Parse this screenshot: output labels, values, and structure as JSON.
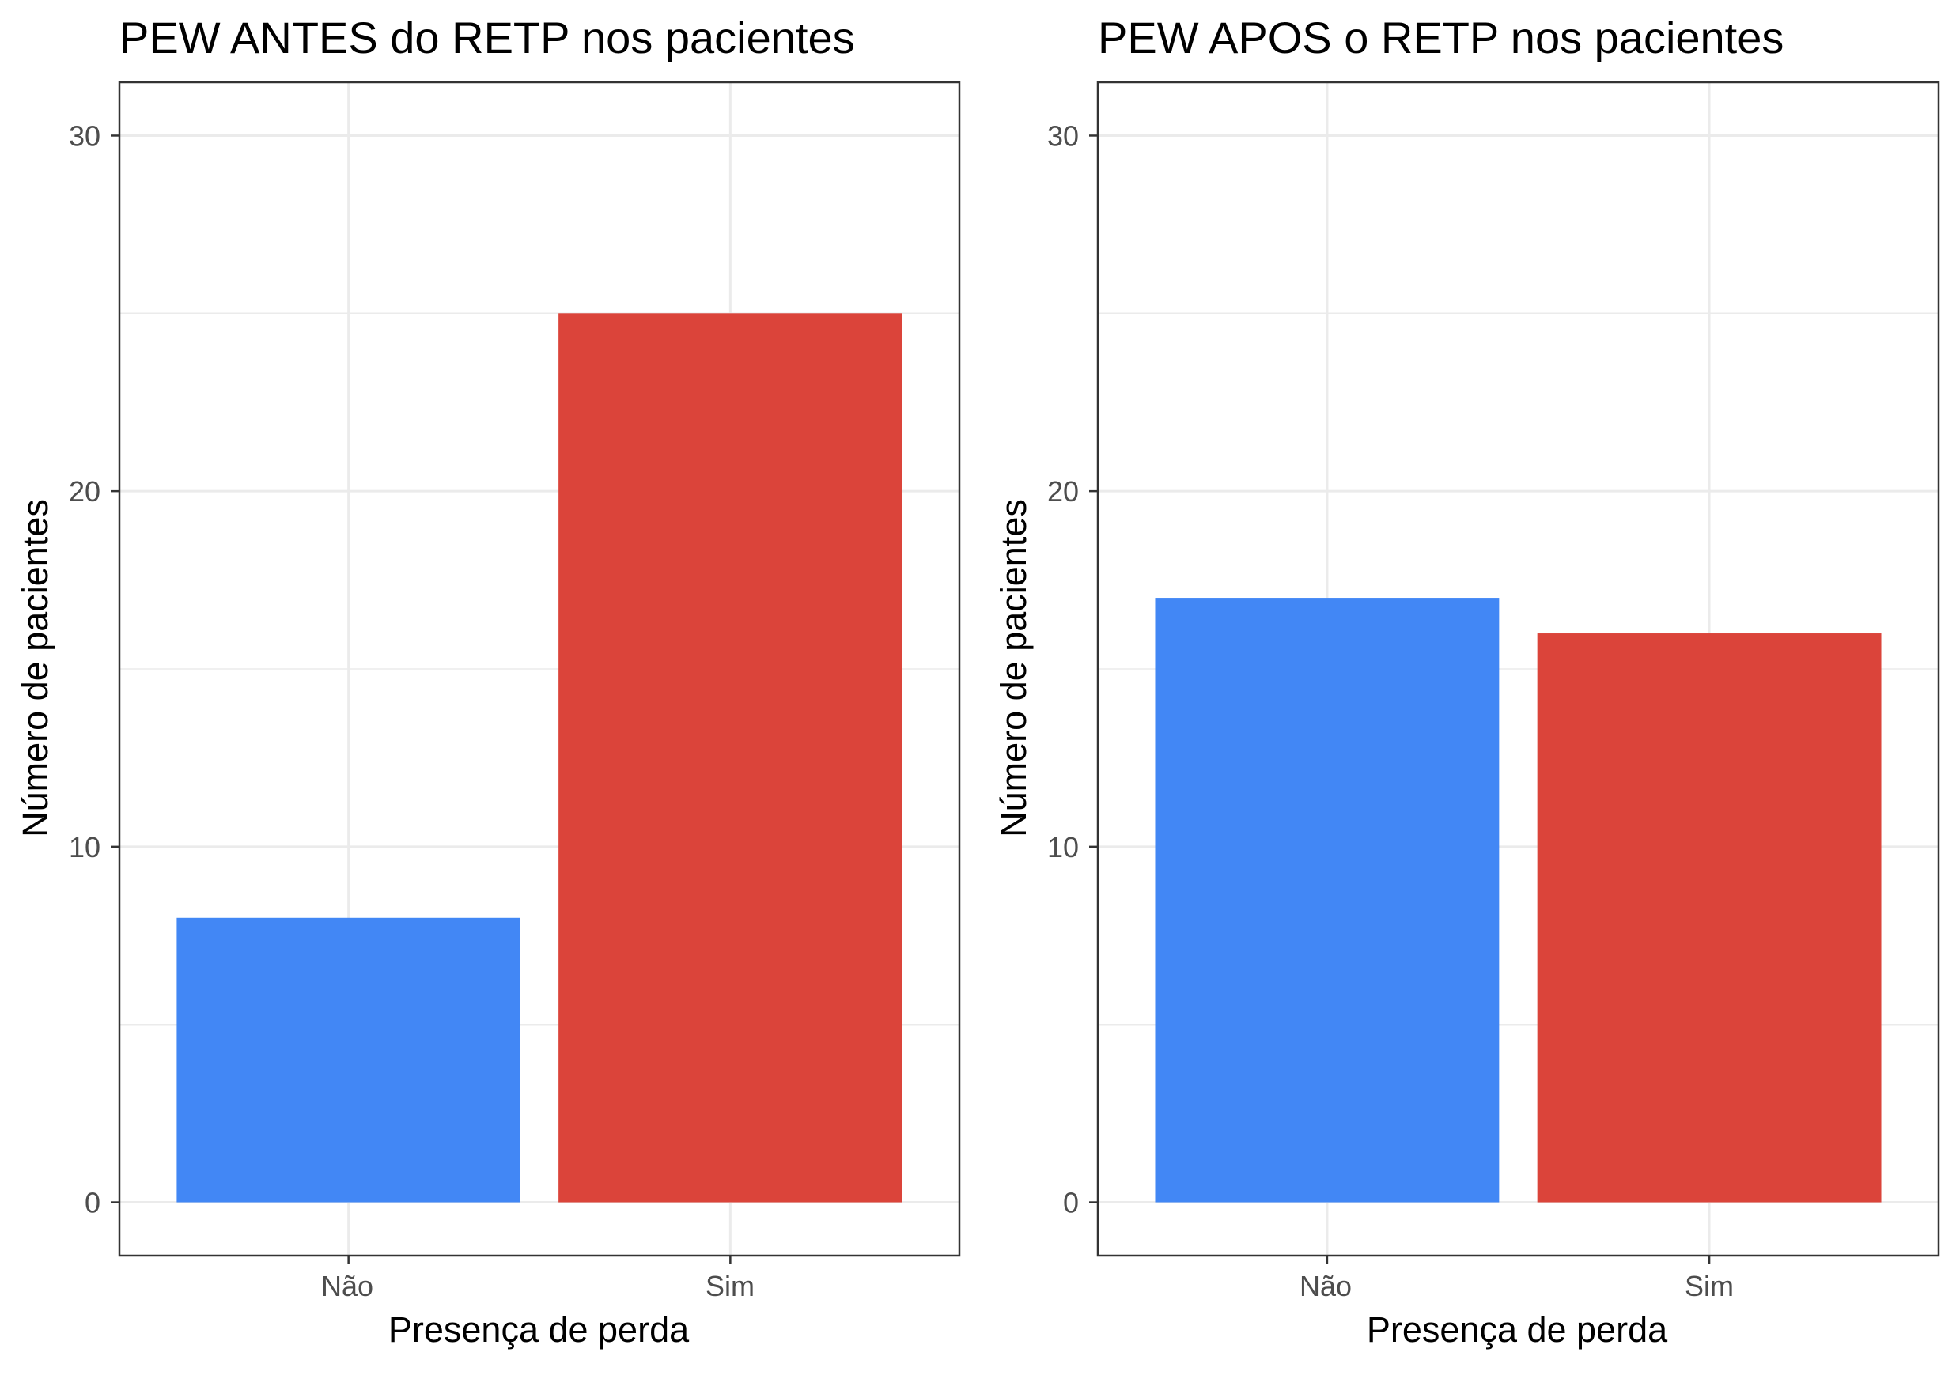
{
  "chart_data": [
    {
      "type": "bar",
      "title": "PEW ANTES do RETP nos pacientes",
      "xlabel": "Presença de perda",
      "ylabel": "Número de pacientes",
      "categories": [
        "Não",
        "Sim"
      ],
      "values": [
        8,
        25
      ],
      "colors": [
        "#4287f5",
        "#db443a"
      ],
      "ylim": [
        -1.5,
        31.5
      ],
      "yticks": [
        0,
        10,
        20,
        30
      ],
      "grid": true,
      "legend": "none"
    },
    {
      "type": "bar",
      "title": "PEW APOS o RETP nos pacientes",
      "xlabel": "Presença de perda",
      "ylabel": "Número de pacientes",
      "categories": [
        "Não",
        "Sim"
      ],
      "values": [
        17,
        16
      ],
      "colors": [
        "#4287f5",
        "#db443a"
      ],
      "ylim": [
        -1.5,
        31.5
      ],
      "yticks": [
        0,
        10,
        20,
        30
      ],
      "grid": true,
      "legend": "none"
    }
  ]
}
